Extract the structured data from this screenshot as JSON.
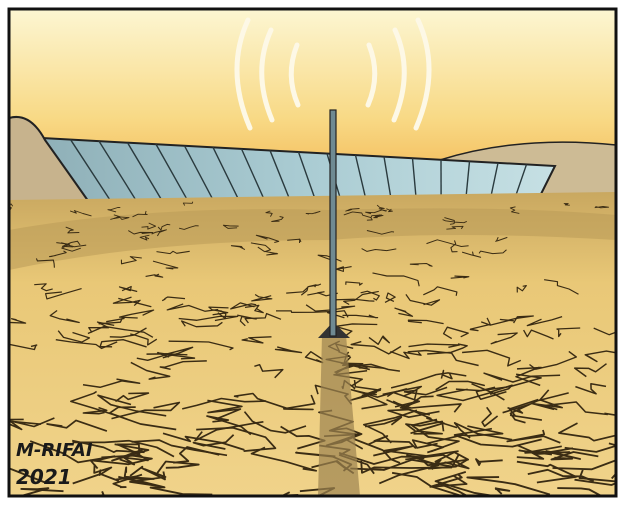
{
  "signature": {
    "name": "M-RIFAI",
    "year": "2021"
  }
}
